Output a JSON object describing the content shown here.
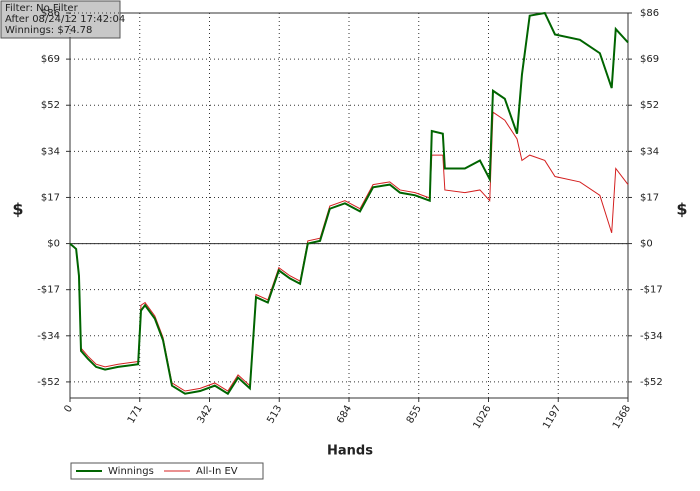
{
  "chart_data": {
    "type": "line",
    "info": [
      "Filter: No Filter",
      "After 08/24/12 17:42:04",
      "Winnings: $74.78"
    ],
    "xlabel": "Hands",
    "ylabel": "$",
    "x": [
      0,
      15,
      22,
      27,
      44,
      64,
      86,
      118,
      167,
      174,
      184,
      208,
      228,
      250,
      282,
      319,
      355,
      387,
      412,
      441,
      456,
      485,
      512,
      539,
      564,
      583,
      613,
      637,
      674,
      711,
      743,
      784,
      809,
      846,
      882,
      887,
      914,
      919,
      968,
      1005,
      1029,
      1037,
      1066,
      1096,
      1108,
      1127,
      1164,
      1189,
      1250,
      1299,
      1328,
      1338,
      1368
    ],
    "series": [
      {
        "name": "Winnings",
        "color": "#006400",
        "values": [
          0,
          -2,
          -12,
          -40,
          -43,
          -46,
          -47,
          -46,
          -45,
          -25,
          -23,
          -28,
          -36,
          -53,
          -56,
          -55,
          -53,
          -56,
          -50,
          -54,
          -20,
          -22,
          -10,
          -13,
          -15,
          0,
          1,
          13,
          15,
          12,
          21,
          22,
          19,
          18,
          16,
          42,
          41,
          28,
          28,
          31,
          24,
          57,
          54,
          41,
          63,
          85,
          86,
          78,
          76,
          71,
          58,
          80,
          75
        ]
      },
      {
        "name": "All-In EV",
        "color": "#d42020",
        "values": [
          0,
          -2,
          -12,
          -39,
          -42,
          -45,
          -46,
          -45,
          -44,
          -23,
          -22,
          -27,
          -35,
          -52,
          -55,
          -54,
          -52,
          -55,
          -49,
          -53,
          -19,
          -21,
          -9,
          -12,
          -14,
          1,
          2,
          14,
          16,
          13,
          22,
          23,
          20,
          19,
          17,
          33,
          33,
          20,
          19,
          20,
          16,
          49,
          46,
          39,
          31,
          33,
          31,
          25,
          23,
          18,
          4,
          28,
          22
        ]
      }
    ],
    "xlim": [
      0,
      1368
    ],
    "xticks": [
      0,
      171,
      342,
      513,
      684,
      855,
      1026,
      1197,
      1368
    ],
    "ylim": [
      -57.6,
      86
    ],
    "yticks": [
      {
        "value": 86,
        "label": "$86"
      },
      {
        "value": 68.8,
        "label": "$69"
      },
      {
        "value": 51.6,
        "label": "$52"
      },
      {
        "value": 34.4,
        "label": "$34"
      },
      {
        "value": 17.2,
        "label": "$17"
      },
      {
        "value": 0,
        "label": "$0"
      },
      {
        "value": -17.2,
        "label": "-$17"
      },
      {
        "value": -34.4,
        "label": "-$34"
      },
      {
        "value": -51.6,
        "label": "-$52"
      }
    ],
    "grid": true,
    "legend": "bottom-left"
  }
}
